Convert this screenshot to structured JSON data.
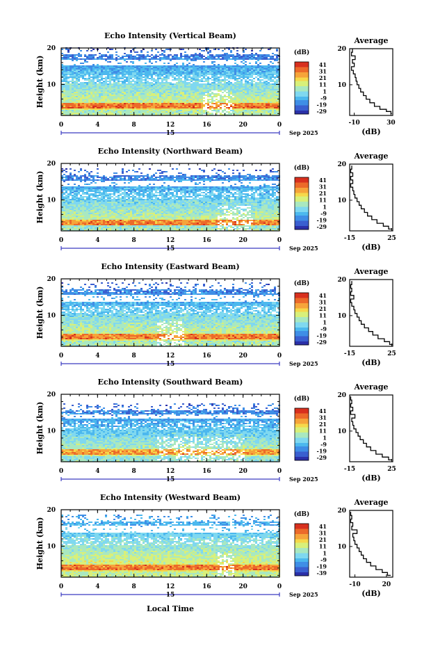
{
  "chart_data": [
    {
      "type": "heatmap",
      "title": "Echo Intensity (Vertical Beam)",
      "ylabel": "Height (km)",
      "y_ticks": [
        "20",
        "10"
      ],
      "x_ticks": [
        "0",
        "4",
        "8",
        "12",
        "16",
        "20",
        "0"
      ],
      "xlim": [
        0,
        24
      ],
      "ylim": [
        1.5,
        20
      ],
      "date_day": "15",
      "date_month": "Sep 2025",
      "colorbar": {
        "unit": "(dB)",
        "ticks": [
          "41",
          "31",
          "21",
          "11",
          "1",
          "-9",
          "-19",
          "-29"
        ],
        "range": [
          -29,
          46
        ]
      },
      "average": {
        "title": "Average",
        "xlabel": "(dB)",
        "x_ticks": [
          "-10",
          "30"
        ],
        "xlim": [
          -15,
          32
        ],
        "y_ticks": [
          "20",
          "10"
        ],
        "profile": [
          [
            31,
            2
          ],
          [
            30,
            2.6
          ],
          [
            25,
            3.2
          ],
          [
            18,
            4
          ],
          [
            12,
            5
          ],
          [
            7,
            6
          ],
          [
            3,
            7
          ],
          [
            0,
            8
          ],
          [
            -3,
            9
          ],
          [
            -5,
            10
          ],
          [
            -7,
            11
          ],
          [
            -8,
            12
          ],
          [
            -9,
            13
          ],
          [
            -11,
            14
          ],
          [
            -13,
            15
          ],
          [
            -10,
            16
          ],
          [
            -12,
            17
          ],
          [
            -9,
            18
          ],
          [
            -13,
            19
          ],
          [
            -12,
            20
          ]
        ]
      },
      "features": {
        "base": -15,
        "top": 18,
        "clear_band": [
          15.2,
          16.4
        ],
        "gap_until": 16.2,
        "hot_layer": 4,
        "artifact_x": [
          15.5,
          19
        ]
      }
    },
    {
      "type": "heatmap",
      "title": "Echo Intensity (Northward Beam)",
      "ylabel": "Height (km)",
      "y_ticks": [
        "20",
        "10"
      ],
      "x_ticks": [
        "0",
        "4",
        "8",
        "12",
        "16",
        "20",
        "0"
      ],
      "xlim": [
        0,
        24
      ],
      "ylim": [
        1.5,
        20
      ],
      "date_day": "15",
      "date_month": "Sep 2025",
      "colorbar": {
        "unit": "(dB)",
        "ticks": [
          "41",
          "31",
          "21",
          "11",
          "1",
          "-9",
          "-19",
          "-29"
        ],
        "range": [
          -29,
          46
        ]
      },
      "average": {
        "title": "Average",
        "xlabel": "(dB)",
        "x_ticks": [
          "-15",
          "25"
        ],
        "xlim": [
          -15,
          26
        ],
        "profile": [
          [
            25,
            2
          ],
          [
            22,
            2.8
          ],
          [
            17,
            3.6
          ],
          [
            11,
            4.6
          ],
          [
            6,
            5.6
          ],
          [
            2,
            6.6
          ],
          [
            -1,
            7.6
          ],
          [
            -4,
            8.6
          ],
          [
            -6,
            9.6
          ],
          [
            -8,
            10.6
          ],
          [
            -10,
            11.6
          ],
          [
            -11,
            12.6
          ],
          [
            -12,
            13.6
          ],
          [
            -14,
            14.6
          ],
          [
            -12,
            15.6
          ],
          [
            -14,
            16.6
          ],
          [
            -12,
            17.6
          ],
          [
            -14,
            18.6
          ],
          [
            -13,
            19.6
          ]
        ]
      },
      "features": {
        "base": -14,
        "top": 16.5,
        "clear_band": [
          13.5,
          15
        ],
        "gap_until": 16.5,
        "hot_layer": 3.5,
        "artifact_x": [
          17,
          21
        ]
      }
    },
    {
      "type": "heatmap",
      "title": "Echo Intensity (Eastward Beam)",
      "ylabel": "Height (km)",
      "y_ticks": [
        "20",
        "10"
      ],
      "x_ticks": [
        "0",
        "4",
        "8",
        "12",
        "16",
        "20",
        "0"
      ],
      "xlim": [
        0,
        24
      ],
      "ylim": [
        1.5,
        20
      ],
      "date_day": "15",
      "date_month": "Sep 2025",
      "colorbar": {
        "unit": "(dB)",
        "ticks": [
          "41",
          "31",
          "21",
          "11",
          "1",
          "-9",
          "-19",
          "-29"
        ],
        "range": [
          -29,
          46
        ]
      },
      "average": {
        "title": "Average",
        "xlabel": "(dB)",
        "x_ticks": [
          "-15",
          "25"
        ],
        "xlim": [
          -15,
          26
        ],
        "profile": [
          [
            26,
            2
          ],
          [
            23,
            2.8
          ],
          [
            18,
            3.6
          ],
          [
            12,
            4.6
          ],
          [
            7,
            5.6
          ],
          [
            3,
            6.6
          ],
          [
            -1,
            7.6
          ],
          [
            -4,
            8.6
          ],
          [
            -6,
            9.6
          ],
          [
            -8,
            10.6
          ],
          [
            -10,
            11.6
          ],
          [
            -11,
            12.6
          ],
          [
            -13,
            13.6
          ],
          [
            -14,
            14.6
          ],
          [
            -11,
            15.6
          ],
          [
            -14,
            16.6
          ],
          [
            -13,
            17.6
          ],
          [
            -14,
            18.6
          ],
          [
            -13,
            19.6
          ]
        ]
      },
      "features": {
        "base": -14,
        "top": 17,
        "clear_band": [
          13.5,
          15.3
        ],
        "gap_until": 16.5,
        "hot_layer": 4,
        "artifact_x": [
          10.5,
          13.5
        ]
      }
    },
    {
      "type": "heatmap",
      "title": "Echo Intensity (Southward Beam)",
      "ylabel": "Height (km)",
      "y_ticks": [
        "20",
        "10"
      ],
      "x_ticks": [
        "0",
        "4",
        "8",
        "12",
        "16",
        "20",
        "0"
      ],
      "xlim": [
        0,
        24
      ],
      "ylim": [
        1.5,
        20
      ],
      "date_day": "15",
      "date_month": "Sep 2025",
      "colorbar": {
        "unit": "(dB)",
        "ticks": [
          "41",
          "31",
          "21",
          "11",
          "1",
          "-9",
          "-19",
          "-29"
        ],
        "range": [
          -29,
          46
        ]
      },
      "average": {
        "title": "Average",
        "xlabel": "(dB)",
        "x_ticks": [
          "-15",
          "25"
        ],
        "xlim": [
          -15,
          26
        ],
        "profile": [
          [
            25,
            2
          ],
          [
            22,
            2.8
          ],
          [
            16,
            3.6
          ],
          [
            10,
            4.6
          ],
          [
            5,
            5.6
          ],
          [
            1,
            6.6
          ],
          [
            -2,
            7.6
          ],
          [
            -5,
            8.6
          ],
          [
            -7,
            9.6
          ],
          [
            -9,
            10.6
          ],
          [
            -11,
            11.6
          ],
          [
            -12,
            12.6
          ],
          [
            -13,
            13.6
          ],
          [
            -10,
            14.6
          ],
          [
            -14,
            15.6
          ],
          [
            -12,
            16.6
          ],
          [
            -14,
            17.6
          ],
          [
            -13,
            18.6
          ],
          [
            -14,
            19.6
          ]
        ]
      },
      "features": {
        "base": -14,
        "top": 15.5,
        "clear_band": [
          13,
          15
        ],
        "gap_until": 16.5,
        "hot_layer": 4,
        "artifact_x": [
          10.5,
          20
        ]
      }
    },
    {
      "type": "heatmap",
      "title": "Echo Intensity (Westward Beam)",
      "ylabel": "Height (km)",
      "y_ticks": [
        "20",
        "10"
      ],
      "x_ticks": [
        "0",
        "4",
        "8",
        "12",
        "16",
        "20",
        "0"
      ],
      "xlim": [
        0,
        24
      ],
      "ylim": [
        1.5,
        20
      ],
      "date_day": "15",
      "date_month": "Sep 2025",
      "colorbar": {
        "unit": "(dB)",
        "ticks": [
          "41",
          "31",
          "21",
          "11",
          "1",
          "-9",
          "-19",
          "-39"
        ],
        "range": [
          -39,
          46
        ]
      },
      "average": {
        "title": "Average",
        "xlabel": "(dB)",
        "x_ticks": [
          "-10",
          "20"
        ],
        "xlim": [
          -15,
          26
        ],
        "profile": [
          [
            24,
            2
          ],
          [
            21,
            2.8
          ],
          [
            16,
            3.6
          ],
          [
            10,
            4.6
          ],
          [
            5,
            5.6
          ],
          [
            1,
            6.6
          ],
          [
            -2,
            7.6
          ],
          [
            -4,
            8.6
          ],
          [
            -6,
            9.6
          ],
          [
            -8,
            10.6
          ],
          [
            -10,
            11.6
          ],
          [
            -11,
            12.6
          ],
          [
            -12,
            13.6
          ],
          [
            -8,
            14.6
          ],
          [
            -13,
            15.6
          ],
          [
            -12,
            16.6
          ],
          [
            -14,
            17.6
          ],
          [
            -13,
            18.6
          ],
          [
            -14,
            19.6
          ]
        ]
      },
      "features": {
        "base": -14,
        "top": 16.5,
        "clear_band": [
          13.5,
          15.3
        ],
        "gap_until": 16.5,
        "hot_layer": 4,
        "artifact_x": [
          17,
          19
        ]
      }
    }
  ],
  "footer": {
    "xlabel": "Local Time"
  },
  "colors": {
    "colormap": [
      "#2b30a8",
      "#3a5fd0",
      "#3f8ee6",
      "#4cb8ee",
      "#7fd8f0",
      "#a9e8c0",
      "#d8f07a",
      "#f6d84a",
      "#f6a43a",
      "#ec6a2a",
      "#d8301e"
    ]
  }
}
